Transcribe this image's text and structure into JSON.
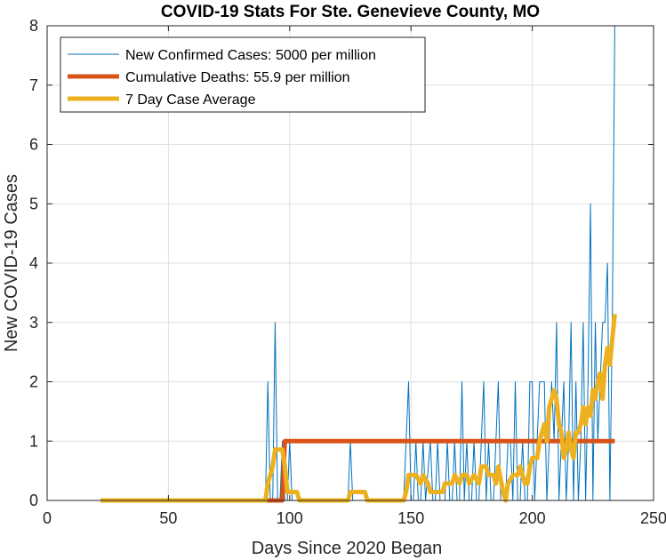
{
  "chart_data": {
    "type": "line",
    "title": "COVID-19 Stats For Ste. Genevieve County, MO",
    "xlabel": "Days Since 2020 Began",
    "ylabel": "New COVID-19 Cases",
    "xlim": [
      0,
      250
    ],
    "ylim": [
      0,
      8
    ],
    "xticks": [
      0,
      50,
      100,
      150,
      200,
      250
    ],
    "yticks": [
      0,
      1,
      2,
      3,
      4,
      5,
      6,
      7,
      8
    ],
    "grid": true,
    "legend_position": "top-left",
    "series": [
      {
        "name": "New Confirmed Cases: 5000 per million",
        "color": "#0072BD",
        "line_width": "thin",
        "points": [
          [
            22,
            0
          ],
          [
            90,
            0
          ],
          [
            91,
            2
          ],
          [
            92,
            0
          ],
          [
            93,
            0
          ],
          [
            94,
            3
          ],
          [
            95,
            0
          ],
          [
            96,
            0
          ],
          [
            97,
            1
          ],
          [
            98,
            0
          ],
          [
            99,
            0
          ],
          [
            100,
            1
          ],
          [
            101,
            0
          ],
          [
            124,
            0
          ],
          [
            125,
            1
          ],
          [
            126,
            0
          ],
          [
            147,
            0
          ],
          [
            148,
            1
          ],
          [
            149,
            2
          ],
          [
            150,
            0
          ],
          [
            151,
            0
          ],
          [
            152,
            1
          ],
          [
            153,
            0
          ],
          [
            154,
            0
          ],
          [
            155,
            1
          ],
          [
            156,
            0
          ],
          [
            158,
            1
          ],
          [
            159,
            0
          ],
          [
            160,
            0
          ],
          [
            161,
            1
          ],
          [
            162,
            0
          ],
          [
            164,
            0
          ],
          [
            165,
            1
          ],
          [
            166,
            0
          ],
          [
            167,
            0
          ],
          [
            168,
            1
          ],
          [
            169,
            0
          ],
          [
            170,
            0
          ],
          [
            171,
            2
          ],
          [
            172,
            0
          ],
          [
            173,
            1
          ],
          [
            174,
            0
          ],
          [
            175,
            0
          ],
          [
            176,
            1
          ],
          [
            177,
            0
          ],
          [
            178,
            0
          ],
          [
            179,
            1
          ],
          [
            180,
            2
          ],
          [
            181,
            0
          ],
          [
            182,
            1
          ],
          [
            183,
            0
          ],
          [
            184,
            0
          ],
          [
            185,
            1
          ],
          [
            186,
            2
          ],
          [
            187,
            0
          ],
          [
            188,
            0
          ],
          [
            189,
            0
          ],
          [
            190,
            1
          ],
          [
            191,
            1
          ],
          [
            192,
            0
          ],
          [
            193,
            2
          ],
          [
            194,
            0
          ],
          [
            195,
            0
          ],
          [
            196,
            1
          ],
          [
            197,
            0
          ],
          [
            198,
            0
          ],
          [
            199,
            2
          ],
          [
            200,
            2
          ],
          [
            201,
            0
          ],
          [
            202,
            1
          ],
          [
            203,
            2
          ],
          [
            204,
            2
          ],
          [
            205,
            2
          ],
          [
            206,
            0
          ],
          [
            207,
            1
          ],
          [
            208,
            2
          ],
          [
            209,
            1
          ],
          [
            210,
            3
          ],
          [
            211,
            0
          ],
          [
            212,
            1
          ],
          [
            213,
            2
          ],
          [
            214,
            0
          ],
          [
            215,
            1
          ],
          [
            216,
            3
          ],
          [
            217,
            0
          ],
          [
            218,
            2
          ],
          [
            219,
            0
          ],
          [
            220,
            1
          ],
          [
            221,
            3
          ],
          [
            222,
            0
          ],
          [
            223,
            2
          ],
          [
            224,
            5
          ],
          [
            225,
            0
          ],
          [
            226,
            3
          ],
          [
            227,
            1
          ],
          [
            228,
            2
          ],
          [
            229,
            3
          ],
          [
            230,
            3
          ],
          [
            231,
            4
          ],
          [
            232,
            0
          ],
          [
            233,
            3
          ],
          [
            234,
            8
          ]
        ]
      },
      {
        "name": "Cumulative Deaths: 55.9 per million",
        "color": "#D95319",
        "line_width": "thick",
        "points": [
          [
            22,
            0
          ],
          [
            97,
            0
          ],
          [
            98,
            1
          ],
          [
            234,
            1
          ]
        ]
      },
      {
        "name": "7 Day Case Average",
        "color": "#EDB120",
        "line_width": "thick",
        "points": [
          [
            22,
            0
          ],
          [
            90,
            0
          ],
          [
            91,
            0.286
          ],
          [
            93,
            0.571
          ],
          [
            94,
            0.857
          ],
          [
            97,
            0.857
          ],
          [
            98,
            0.571
          ],
          [
            99,
            0.143
          ],
          [
            101,
            0.143
          ],
          [
            103,
            0.143
          ],
          [
            104,
            0
          ],
          [
            124,
            0
          ],
          [
            125,
            0.143
          ],
          [
            131,
            0.143
          ],
          [
            132,
            0
          ],
          [
            147,
            0
          ],
          [
            148,
            0.143
          ],
          [
            149,
            0.429
          ],
          [
            152,
            0.429
          ],
          [
            154,
            0.286
          ],
          [
            155,
            0.429
          ],
          [
            157,
            0.286
          ],
          [
            158,
            0.143
          ],
          [
            163,
            0.143
          ],
          [
            164,
            0.286
          ],
          [
            167,
            0.286
          ],
          [
            168,
            0.429
          ],
          [
            170,
            0.286
          ],
          [
            171,
            0.429
          ],
          [
            173,
            0.429
          ],
          [
            174,
            0.286
          ],
          [
            176,
            0.429
          ],
          [
            178,
            0.286
          ],
          [
            179,
            0.571
          ],
          [
            181,
            0.571
          ],
          [
            182,
            0.429
          ],
          [
            184,
            0.429
          ],
          [
            185,
            0.286
          ],
          [
            186,
            0.571
          ],
          [
            188,
            0.143
          ],
          [
            189,
            0
          ],
          [
            190,
            0.286
          ],
          [
            192,
            0.429
          ],
          [
            194,
            0.429
          ],
          [
            195,
            0.571
          ],
          [
            196,
            0.429
          ],
          [
            197,
            0.286
          ],
          [
            198,
            0.286
          ],
          [
            199,
            0.571
          ],
          [
            200,
            0.714
          ],
          [
            202,
            0.714
          ],
          [
            203,
            1
          ],
          [
            205,
            1.286
          ],
          [
            206,
            1
          ],
          [
            207,
            1.571
          ],
          [
            209,
            1.857
          ],
          [
            210,
            1.714
          ],
          [
            211,
            1.286
          ],
          [
            212,
            1.143
          ],
          [
            213,
            0.714
          ],
          [
            214,
            0.857
          ],
          [
            215,
            1.143
          ],
          [
            216,
            0.857
          ],
          [
            217,
            0.714
          ],
          [
            218,
            1.143
          ],
          [
            219,
            1.143
          ],
          [
            220,
            1.286
          ],
          [
            221,
            1.571
          ],
          [
            222,
            1.286
          ],
          [
            223,
            1.571
          ],
          [
            224,
            1.429
          ],
          [
            225,
            1.857
          ],
          [
            226,
            1.714
          ],
          [
            227,
            2
          ],
          [
            228,
            2.143
          ],
          [
            229,
            1.714
          ],
          [
            230,
            2.286
          ],
          [
            231,
            2.571
          ],
          [
            232,
            2.286
          ],
          [
            233,
            2.714
          ],
          [
            234,
            3.143
          ]
        ]
      }
    ]
  }
}
